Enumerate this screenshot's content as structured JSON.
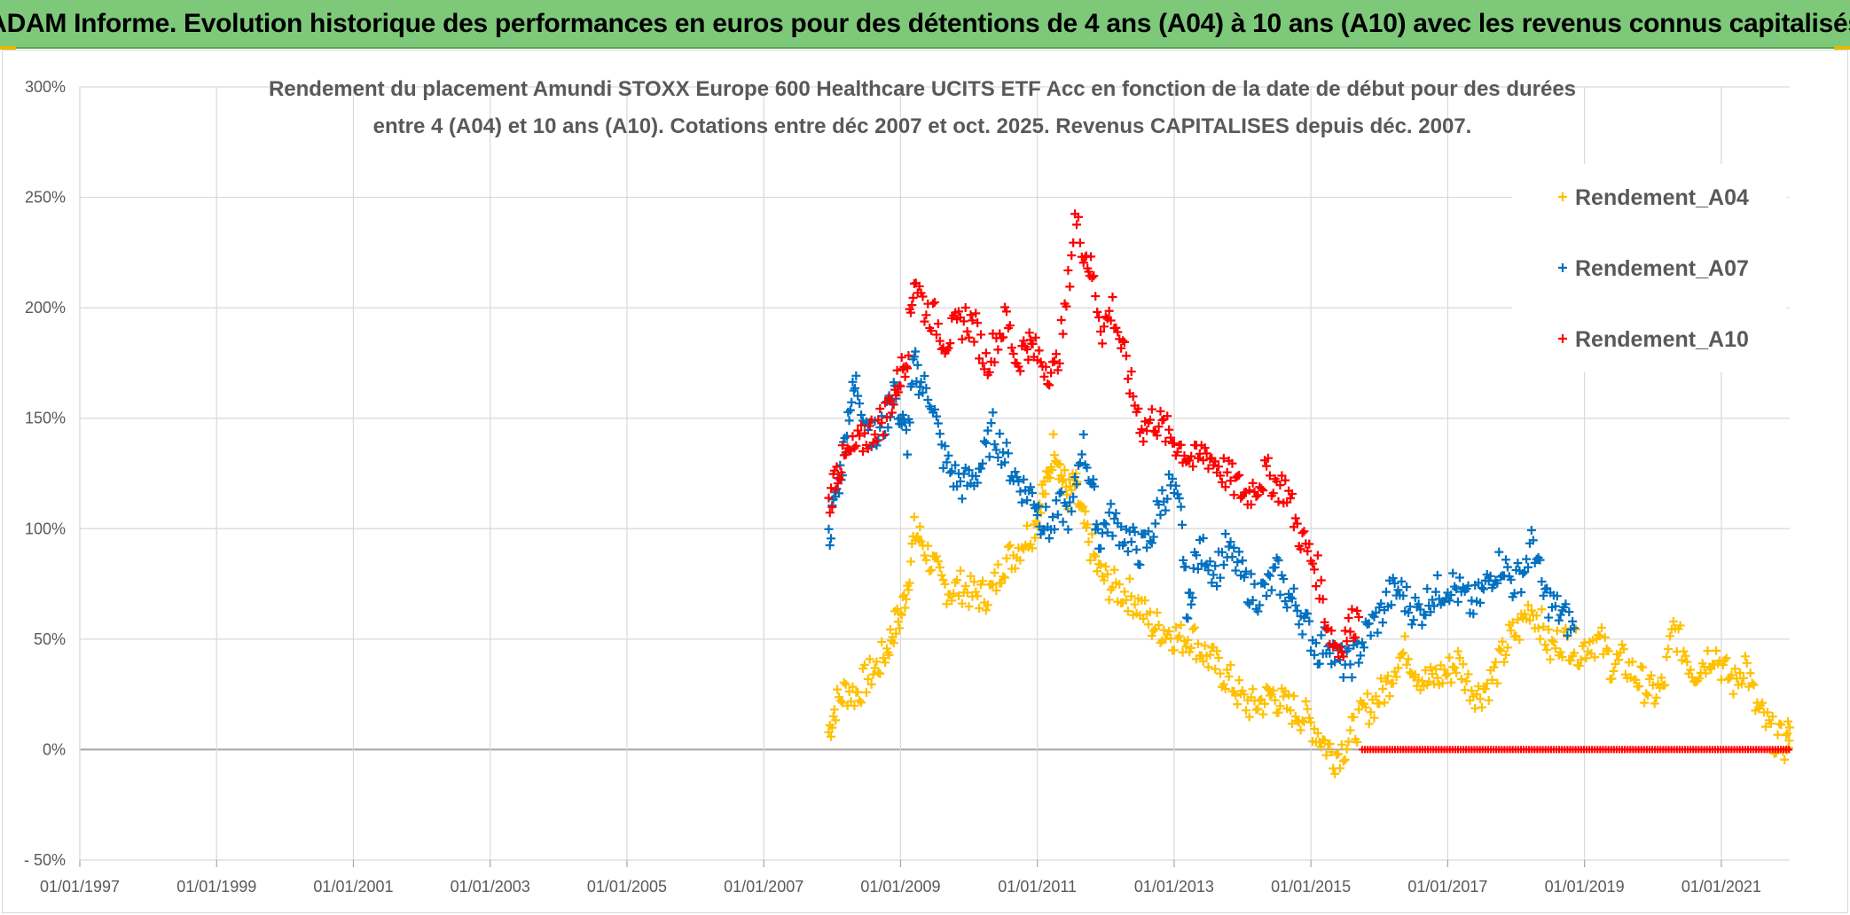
{
  "header": {
    "title": "ADAM Informe. Evolution historique des performances en euros pour des détentions de 4 ans (A04) à 10 ans (A10) avec les revenus connus capitalisés"
  },
  "chart_data": {
    "type": "scatter",
    "title_lines": [
      "Rendement du placement Amundi STOXX Europe 600 Healthcare UCITS ETF Acc en fonction de la date de début pour des durées",
      "entre 4 (A04) et 10 ans (A10). Cotations entre déc 2007 et oct. 2025. Revenus CAPITALISES depuis déc. 2007."
    ],
    "xlabel": "",
    "ylabel": "",
    "x_range": [
      1997.0,
      2022.0
    ],
    "ylim": [
      -50,
      300
    ],
    "y_ticks": [
      300,
      250,
      200,
      150,
      100,
      50,
      0,
      -50
    ],
    "y_tick_labels": [
      "300%",
      "250%",
      "200%",
      "150%",
      "100%",
      "50%",
      "0%",
      "- 50%"
    ],
    "x_tick_labels": [
      "01/01/1997",
      "01/01/1999",
      "01/01/2001",
      "01/01/2003",
      "01/01/2005",
      "01/01/2007",
      "01/01/2009",
      "01/01/2011",
      "01/01/2013",
      "01/01/2015",
      "01/01/2017",
      "01/01/2019",
      "01/01/2021"
    ],
    "x_tick_years": [
      1997,
      1999,
      2001,
      2003,
      2005,
      2007,
      2009,
      2011,
      2013,
      2015,
      2017,
      2019,
      2021
    ],
    "marker": "+",
    "series": [
      {
        "name": "Rendement_A04",
        "color": "#ffc000",
        "points": [
          [
            2007.95,
            8
          ],
          [
            2008.05,
            20
          ],
          [
            2008.2,
            27
          ],
          [
            2008.35,
            25
          ],
          [
            2008.5,
            32
          ],
          [
            2008.65,
            37
          ],
          [
            2008.8,
            45
          ],
          [
            2008.9,
            55
          ],
          [
            2009.0,
            60
          ],
          [
            2009.1,
            75
          ],
          [
            2009.2,
            98
          ],
          [
            2009.3,
            95
          ],
          [
            2009.45,
            85
          ],
          [
            2009.6,
            75
          ],
          [
            2009.75,
            72
          ],
          [
            2009.9,
            74
          ],
          [
            2010.05,
            70
          ],
          [
            2010.2,
            70
          ],
          [
            2010.35,
            72
          ],
          [
            2010.5,
            85
          ],
          [
            2010.65,
            88
          ],
          [
            2010.8,
            95
          ],
          [
            2010.95,
            100
          ],
          [
            2011.05,
            115
          ],
          [
            2011.15,
            120
          ],
          [
            2011.25,
            140
          ],
          [
            2011.35,
            125
          ],
          [
            2011.45,
            115
          ],
          [
            2011.55,
            120
          ],
          [
            2011.65,
            105
          ],
          [
            2011.75,
            95
          ],
          [
            2011.9,
            80
          ],
          [
            2012.05,
            75
          ],
          [
            2012.2,
            72
          ],
          [
            2012.35,
            70
          ],
          [
            2012.5,
            65
          ],
          [
            2012.65,
            57
          ],
          [
            2012.8,
            55
          ],
          [
            2012.95,
            53
          ],
          [
            2013.1,
            50
          ],
          [
            2013.25,
            52
          ],
          [
            2013.4,
            45
          ],
          [
            2013.55,
            40
          ],
          [
            2013.7,
            35
          ],
          [
            2013.85,
            30
          ],
          [
            2014.0,
            22
          ],
          [
            2014.15,
            20
          ],
          [
            2014.3,
            22
          ],
          [
            2014.45,
            25
          ],
          [
            2014.6,
            20
          ],
          [
            2014.75,
            18
          ],
          [
            2014.9,
            15
          ],
          [
            2015.05,
            10
          ],
          [
            2015.2,
            3
          ],
          [
            2015.35,
            -3
          ],
          [
            2015.5,
            2
          ],
          [
            2015.65,
            10
          ],
          [
            2015.8,
            18
          ],
          [
            2015.95,
            22
          ],
          [
            2016.1,
            28
          ],
          [
            2016.25,
            40
          ],
          [
            2016.4,
            45
          ],
          [
            2016.55,
            35
          ],
          [
            2016.7,
            30
          ],
          [
            2016.85,
            33
          ],
          [
            2017.0,
            35
          ],
          [
            2017.15,
            40
          ],
          [
            2017.3,
            30
          ],
          [
            2017.45,
            25
          ],
          [
            2017.6,
            30
          ],
          [
            2017.75,
            38
          ],
          [
            2017.9,
            50
          ],
          [
            2018.05,
            55
          ],
          [
            2018.2,
            65
          ],
          [
            2018.35,
            58
          ],
          [
            2018.5,
            45
          ],
          [
            2018.65,
            50
          ],
          [
            2018.8,
            48
          ],
          [
            2018.95,
            45
          ],
          [
            2019.1,
            50
          ],
          [
            2019.25,
            48
          ],
          [
            2019.4,
            38
          ],
          [
            2019.55,
            40
          ],
          [
            2019.7,
            35
          ],
          [
            2019.85,
            30
          ],
          [
            2020.0,
            25
          ],
          [
            2020.15,
            28
          ],
          [
            2020.3,
            55
          ],
          [
            2020.45,
            45
          ],
          [
            2020.6,
            35
          ],
          [
            2020.75,
            40
          ],
          [
            2020.9,
            45
          ],
          [
            2021.05,
            35
          ],
          [
            2021.2,
            30
          ],
          [
            2021.35,
            40
          ],
          [
            2021.5,
            20
          ],
          [
            2021.65,
            12
          ],
          [
            2021.8,
            5
          ],
          [
            2021.95,
            2
          ],
          [
            2022.0,
            10
          ]
        ]
      },
      {
        "name": "Rendement_A07",
        "color": "#0070c0",
        "points": [
          [
            2007.95,
            95
          ],
          [
            2008.05,
            115
          ],
          [
            2008.15,
            130
          ],
          [
            2008.25,
            155
          ],
          [
            2008.35,
            165
          ],
          [
            2008.5,
            150
          ],
          [
            2008.65,
            140
          ],
          [
            2008.8,
            150
          ],
          [
            2008.9,
            165
          ],
          [
            2009.0,
            150
          ],
          [
            2009.1,
            140
          ],
          [
            2009.2,
            175
          ],
          [
            2009.3,
            165
          ],
          [
            2009.45,
            160
          ],
          [
            2009.6,
            135
          ],
          [
            2009.75,
            125
          ],
          [
            2009.9,
            120
          ],
          [
            2010.05,
            122
          ],
          [
            2010.2,
            130
          ],
          [
            2010.35,
            145
          ],
          [
            2010.5,
            135
          ],
          [
            2010.65,
            125
          ],
          [
            2010.8,
            118
          ],
          [
            2010.95,
            115
          ],
          [
            2011.05,
            105
          ],
          [
            2011.2,
            100
          ],
          [
            2011.35,
            110
          ],
          [
            2011.5,
            105
          ],
          [
            2011.65,
            140
          ],
          [
            2011.8,
            120
          ],
          [
            2011.9,
            95
          ],
          [
            2012.05,
            105
          ],
          [
            2012.2,
            100
          ],
          [
            2012.35,
            95
          ],
          [
            2012.5,
            90
          ],
          [
            2012.65,
            95
          ],
          [
            2012.8,
            112
          ],
          [
            2012.95,
            120
          ],
          [
            2013.1,
            105
          ],
          [
            2013.2,
            60
          ],
          [
            2013.3,
            85
          ],
          [
            2013.45,
            90
          ],
          [
            2013.6,
            80
          ],
          [
            2013.75,
            90
          ],
          [
            2013.9,
            85
          ],
          [
            2014.05,
            75
          ],
          [
            2014.2,
            70
          ],
          [
            2014.35,
            72
          ],
          [
            2014.5,
            80
          ],
          [
            2014.65,
            70
          ],
          [
            2014.8,
            65
          ],
          [
            2014.95,
            55
          ],
          [
            2015.1,
            45
          ],
          [
            2015.25,
            50
          ],
          [
            2015.4,
            40
          ],
          [
            2015.55,
            38
          ],
          [
            2015.7,
            45
          ],
          [
            2015.85,
            55
          ],
          [
            2016.0,
            60
          ],
          [
            2016.15,
            70
          ],
          [
            2016.3,
            72
          ],
          [
            2016.45,
            65
          ],
          [
            2016.6,
            62
          ],
          [
            2016.75,
            70
          ],
          [
            2016.9,
            72
          ],
          [
            2017.05,
            75
          ],
          [
            2017.2,
            70
          ],
          [
            2017.35,
            65
          ],
          [
            2017.5,
            70
          ],
          [
            2017.65,
            80
          ],
          [
            2017.8,
            85
          ],
          [
            2017.95,
            75
          ],
          [
            2018.1,
            80
          ],
          [
            2018.25,
            95
          ],
          [
            2018.4,
            70
          ],
          [
            2018.55,
            65
          ],
          [
            2018.7,
            60
          ],
          [
            2018.85,
            55
          ]
        ]
      },
      {
        "name": "Rendement_A10",
        "color": "#ff0000",
        "points": [
          [
            2007.95,
            110
          ],
          [
            2008.05,
            125
          ],
          [
            2008.15,
            130
          ],
          [
            2008.3,
            135
          ],
          [
            2008.45,
            140
          ],
          [
            2008.6,
            145
          ],
          [
            2008.75,
            150
          ],
          [
            2008.9,
            160
          ],
          [
            2009.0,
            170
          ],
          [
            2009.1,
            180
          ],
          [
            2009.2,
            215
          ],
          [
            2009.35,
            200
          ],
          [
            2009.5,
            195
          ],
          [
            2009.65,
            185
          ],
          [
            2009.8,
            190
          ],
          [
            2009.95,
            195
          ],
          [
            2010.1,
            190
          ],
          [
            2010.25,
            175
          ],
          [
            2010.4,
            185
          ],
          [
            2010.55,
            195
          ],
          [
            2010.7,
            175
          ],
          [
            2010.85,
            185
          ],
          [
            2010.95,
            180
          ],
          [
            2011.1,
            175
          ],
          [
            2011.25,
            170
          ],
          [
            2011.4,
            195
          ],
          [
            2011.55,
            240
          ],
          [
            2011.7,
            225
          ],
          [
            2011.8,
            215
          ],
          [
            2011.95,
            190
          ],
          [
            2012.1,
            200
          ],
          [
            2012.25,
            180
          ],
          [
            2012.4,
            160
          ],
          [
            2012.55,
            145
          ],
          [
            2012.7,
            150
          ],
          [
            2012.85,
            145
          ],
          [
            2013.0,
            140
          ],
          [
            2013.15,
            135
          ],
          [
            2013.3,
            130
          ],
          [
            2013.45,
            135
          ],
          [
            2013.6,
            130
          ],
          [
            2013.75,
            125
          ],
          [
            2013.9,
            120
          ],
          [
            2014.05,
            115
          ],
          [
            2014.2,
            120
          ],
          [
            2014.35,
            125
          ],
          [
            2014.5,
            120
          ],
          [
            2014.65,
            118
          ],
          [
            2014.8,
            100
          ],
          [
            2014.95,
            90
          ],
          [
            2015.1,
            80
          ],
          [
            2015.25,
            55
          ],
          [
            2015.4,
            45
          ],
          [
            2015.55,
            55
          ],
          [
            2015.7,
            60
          ]
        ]
      },
      {
        "name": "Rendement_A10_zero_line",
        "color": "#ff0000",
        "x_range": [
          2015.75,
          2022.0
        ],
        "value": 0
      }
    ],
    "legend": {
      "position": "top-right",
      "entries": [
        "Rendement_A04",
        "Rendement_A07",
        "Rendement_A10"
      ]
    }
  }
}
